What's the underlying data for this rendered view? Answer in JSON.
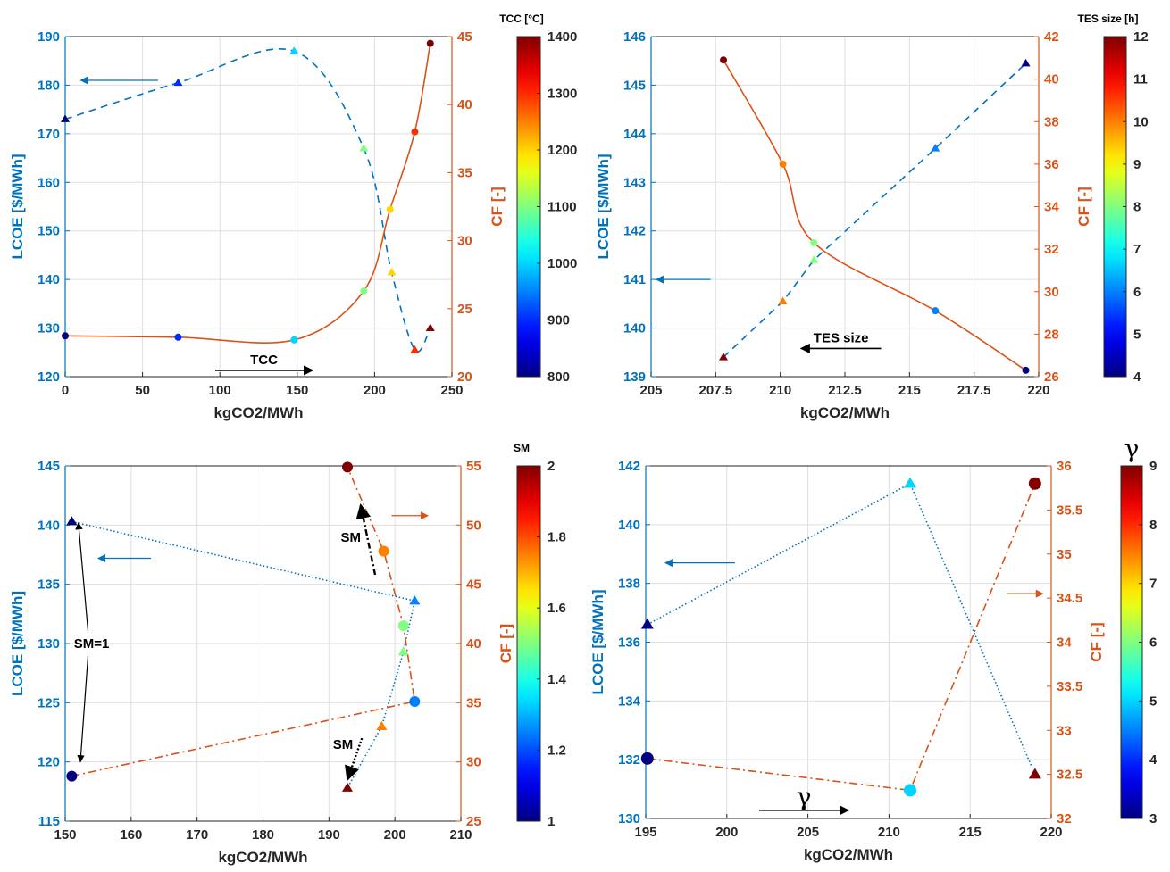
{
  "colors": {
    "left_axis": "#0072BD",
    "right_axis": "#D95319",
    "grid": "#dfdfdf",
    "frame": "#262626",
    "colormap": [
      "#00008f",
      "#0000ff",
      "#0080ff",
      "#00ffff",
      "#80ff80",
      "#ffff00",
      "#ff8000",
      "#ff0000",
      "#800000"
    ]
  },
  "chart_data": [
    {
      "type": "scatter",
      "xlabel": "kgCO2/MWh",
      "ylabel_left": "LCOE [$/MWh]",
      "ylabel_right": "CF [-]",
      "xlim": [
        0,
        250
      ],
      "xticks": [
        0,
        50,
        100,
        150,
        200,
        250
      ],
      "ylim_left": [
        120,
        190
      ],
      "yticks_left": [
        120,
        130,
        140,
        150,
        160,
        170,
        180,
        190
      ],
      "ylim_right": [
        20,
        45
      ],
      "yticks_right": [
        20,
        25,
        30,
        35,
        40,
        45
      ],
      "colorbar": {
        "title": "TCC [°C]",
        "range": [
          800,
          1400
        ],
        "ticks": [
          800,
          900,
          1000,
          1100,
          1200,
          1300,
          1400
        ]
      },
      "series": [
        {
          "axis": "left",
          "marker": "triangle",
          "size": 5,
          "line": "dashed-smooth",
          "points": [
            {
              "x": 0,
              "y": 173,
              "c": 800
            },
            {
              "x": 73,
              "y": 180.5,
              "c": 900
            },
            {
              "x": 148,
              "y": 187,
              "c": 1000
            },
            {
              "x": 193,
              "y": 167,
              "c": 1100
            },
            {
              "x": 211,
              "y": 141.5,
              "c": 1200
            },
            {
              "x": 226,
              "y": 125.5,
              "c": 1300
            },
            {
              "x": 236,
              "y": 130,
              "c": 1400
            }
          ]
        },
        {
          "axis": "right",
          "marker": "circle",
          "size": 4,
          "line": "solid-smooth",
          "points": [
            {
              "x": 0,
              "y": 23,
              "c": 800
            },
            {
              "x": 73,
              "y": 22.9,
              "c": 900
            },
            {
              "x": 148,
              "y": 22.7,
              "c": 1000
            },
            {
              "x": 193,
              "y": 26.3,
              "c": 1100
            },
            {
              "x": 210,
              "y": 32.3,
              "c": 1200
            },
            {
              "x": 226,
              "y": 38,
              "c": 1300
            },
            {
              "x": 236,
              "y": 44.5,
              "c": 1400
            }
          ]
        }
      ],
      "annotations": [
        {
          "text": "",
          "kind": "arrow",
          "from": [
            60,
            181
          ],
          "to": [
            10,
            181
          ],
          "color": "#0072BD"
        },
        {
          "text": "",
          "kind": "arrow",
          "from": [
            218,
            159
          ],
          "to": [
            244,
            159
          ],
          "color": "#D95319"
        },
        {
          "text": "TCC",
          "kind": "arrow",
          "from": [
            97,
            121.3
          ],
          "to": [
            160,
            121.3
          ],
          "color": "#000000"
        }
      ]
    },
    {
      "type": "scatter",
      "xlabel": "kgCO2/MWh",
      "ylabel_left": "LCOE [$/MWh]",
      "ylabel_right": "CF [-]",
      "xlim": [
        205,
        220
      ],
      "xticks": [
        205,
        207.5,
        210,
        212.5,
        215,
        217.5,
        220
      ],
      "ylim_left": [
        139,
        146
      ],
      "yticks_left": [
        139,
        140,
        141,
        142,
        143,
        144,
        145,
        146
      ],
      "ylim_right": [
        26,
        42
      ],
      "yticks_right": [
        26,
        28,
        30,
        32,
        34,
        36,
        38,
        40,
        42
      ],
      "colorbar": {
        "title": "TES size [h]",
        "range": [
          4,
          12
        ],
        "ticks": [
          4,
          5,
          6,
          7,
          8,
          9,
          10,
          11,
          12
        ]
      },
      "series": [
        {
          "axis": "left",
          "marker": "triangle",
          "size": 5,
          "line": "dashed",
          "points": [
            {
              "x": 207.8,
              "y": 139.4,
              "c": 12
            },
            {
              "x": 210.1,
              "y": 140.55,
              "c": 10
            },
            {
              "x": 211.3,
              "y": 141.4,
              "c": 8
            },
            {
              "x": 216,
              "y": 143.7,
              "c": 6
            },
            {
              "x": 219.5,
              "y": 145.45,
              "c": 4
            }
          ]
        },
        {
          "axis": "right",
          "marker": "circle",
          "size": 4,
          "line": "solid-smooth",
          "points": [
            {
              "x": 207.8,
              "y": 40.9,
              "c": 12
            },
            {
              "x": 210.1,
              "y": 36,
              "c": 10
            },
            {
              "x": 211.3,
              "y": 32.3,
              "c": 8
            },
            {
              "x": 216,
              "y": 29.1,
              "c": 6
            },
            {
              "x": 219.5,
              "y": 26.3,
              "c": 4
            }
          ]
        }
      ],
      "annotations": [
        {
          "text": "",
          "kind": "arrow",
          "from": [
            207.3,
            141
          ],
          "to": [
            205.2,
            141
          ],
          "color": "#0072BD"
        },
        {
          "text": "",
          "kind": "arrow",
          "from": [
            216.2,
            141
          ],
          "to": [
            218.8,
            141
          ],
          "color": "#D95319"
        },
        {
          "text": "TES size",
          "kind": "arrow",
          "from": [
            213.9,
            139.58
          ],
          "to": [
            210.8,
            139.58
          ],
          "color": "#000000"
        }
      ]
    },
    {
      "type": "scatter",
      "xlabel": "kgCO2/MWh",
      "ylabel_left": "LCOE [$/MWh]",
      "ylabel_right": "CF [-]",
      "xlim": [
        150,
        210
      ],
      "xticks": [
        150,
        160,
        170,
        180,
        190,
        200,
        210
      ],
      "ylim_left": [
        115,
        145
      ],
      "yticks_left": [
        115,
        120,
        125,
        130,
        135,
        140,
        145
      ],
      "ylim_right": [
        25,
        55
      ],
      "yticks_right": [
        25,
        30,
        35,
        40,
        45,
        50,
        55
      ],
      "colorbar": {
        "title": "SM",
        "range": [
          1,
          2
        ],
        "ticks": [
          1,
          1.2,
          1.4,
          1.6,
          1.8,
          2
        ]
      },
      "series": [
        {
          "axis": "left",
          "marker": "triangle",
          "size": 6,
          "line": "dotted",
          "points": [
            {
              "x": 151,
              "y": 140.3,
              "c": 1
            },
            {
              "x": 203,
              "y": 133.6,
              "c": 1.25
            },
            {
              "x": 201.3,
              "y": 129.3,
              "c": 1.5
            },
            {
              "x": 198,
              "y": 123,
              "c": 1.75
            },
            {
              "x": 192.8,
              "y": 117.8,
              "c": 2
            }
          ]
        },
        {
          "axis": "right",
          "marker": "circle",
          "size": 6,
          "line": "dashdot",
          "points": [
            {
              "x": 151,
              "y": 28.8,
              "c": 1
            },
            {
              "x": 203,
              "y": 35.1,
              "c": 1.25
            },
            {
              "x": 201.3,
              "y": 41.5,
              "c": 1.5
            },
            {
              "x": 198.3,
              "y": 47.8,
              "c": 1.75
            },
            {
              "x": 192.8,
              "y": 54.9,
              "c": 2
            }
          ]
        }
      ],
      "annotations": [
        {
          "text": "",
          "kind": "arrow",
          "from": [
            163,
            137.2
          ],
          "to": [
            155,
            137.2
          ],
          "color": "#0072BD"
        },
        {
          "text": "",
          "kind": "arrow",
          "from": [
            199.5,
            50.8
          ],
          "to": [
            205,
            50.8
          ],
          "color": "#D95319"
        },
        {
          "text": "SM",
          "kind": "arrow-dashdot",
          "from": [
            197,
            135.8
          ],
          "to": [
            194.8,
            141.7
          ],
          "color": "#000000"
        },
        {
          "text": "SM",
          "kind": "arrow-dotted",
          "from": [
            195,
            122
          ],
          "to": [
            192.8,
            118.5
          ],
          "color": "#000000"
        },
        {
          "text": "SM=1",
          "kind": "twin-arrow",
          "from": [
            154,
            130
          ],
          "to1": [
            152,
            140.2
          ],
          "to2": [
            152.3,
            120
          ],
          "color": "#000000"
        }
      ]
    },
    {
      "type": "scatter",
      "xlabel": "kgCO2/MWh",
      "ylabel_left": "LCOE [$/MWh]",
      "ylabel_right": "CF [-]",
      "xlim": [
        195,
        220
      ],
      "xticks": [
        195,
        200,
        205,
        210,
        215,
        220
      ],
      "ylim_left": [
        130,
        142
      ],
      "yticks_left": [
        130,
        132,
        134,
        136,
        138,
        140,
        142
      ],
      "ylim_right": [
        32,
        36
      ],
      "yticks_right": [
        32,
        32.5,
        33,
        33.5,
        34,
        34.5,
        35,
        35.5,
        36
      ],
      "colorbar": {
        "title": "γ",
        "range": [
          3,
          9
        ],
        "ticks": [
          3,
          4,
          5,
          6,
          7,
          8,
          9
        ]
      },
      "series": [
        {
          "axis": "left",
          "marker": "triangle",
          "size": 7,
          "line": "dotted",
          "points": [
            {
              "x": 195.1,
              "y": 136.6,
              "c": 3
            },
            {
              "x": 211.3,
              "y": 141.4,
              "c": 5
            },
            {
              "x": 219,
              "y": 131.5,
              "c": 9
            }
          ]
        },
        {
          "axis": "right",
          "marker": "circle",
          "size": 7,
          "line": "dashdot",
          "points": [
            {
              "x": 195.1,
              "y": 32.68,
              "c": 3
            },
            {
              "x": 211.3,
              "y": 32.32,
              "c": 5
            },
            {
              "x": 219,
              "y": 35.8,
              "c": 9
            }
          ]
        }
      ],
      "annotations": [
        {
          "text": "",
          "kind": "arrow",
          "from": [
            200.5,
            138.7
          ],
          "to": [
            196.2,
            138.7
          ],
          "color": "#0072BD"
        },
        {
          "text": "",
          "kind": "arrow",
          "from": [
            217.3,
            34.55
          ],
          "to": [
            219.5,
            34.55
          ],
          "color": "#D95319"
        },
        {
          "text": "γ",
          "kind": "arrow",
          "from": [
            202,
            130.28
          ],
          "to": [
            207.5,
            130.28
          ],
          "color": "#000000"
        }
      ]
    }
  ]
}
